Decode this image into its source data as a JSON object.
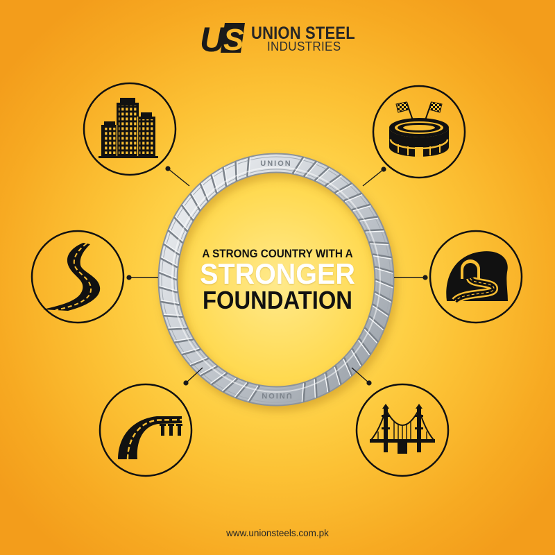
{
  "brand": {
    "logo_mark": {
      "u": "U",
      "s": "S"
    },
    "name_line1": "UNION STEEL",
    "name_line2": "INDUSTRIES"
  },
  "ring": {
    "top_text": "UNION",
    "bottom_text": "UNION"
  },
  "headline": {
    "line1": "A STRONG COUNTRY WITH A",
    "line2": "STRONGER",
    "line3": "FOUNDATION"
  },
  "applications": {
    "top_left": "buildings-icon",
    "top_right": "stadium-icon",
    "middle_left": "winding-road-icon",
    "middle_right": "tunnel-icon",
    "bottom_left": "highway-overpass-icon",
    "bottom_right": "suspension-bridge-icon"
  },
  "footer": {
    "url": "www.unionsteels.com.pk"
  },
  "colors": {
    "background_center": "#FFEA8C",
    "background_mid": "#FCC235",
    "background_edge": "#F39D1B",
    "ink": "#111111",
    "headline_highlight": "#FFFFFF",
    "steel": "#C9CED4"
  }
}
